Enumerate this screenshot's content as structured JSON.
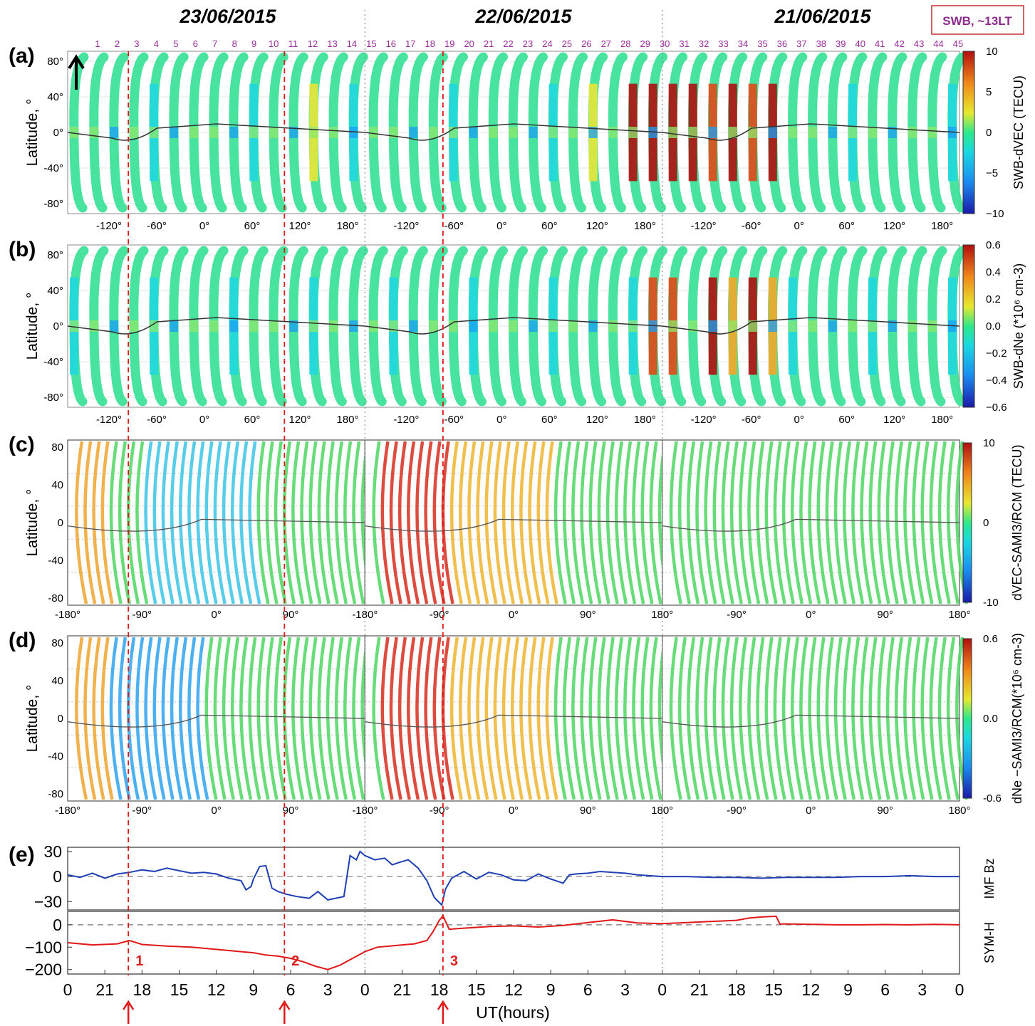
{
  "header": {
    "dates": [
      "23/06/2015",
      "22/06/2015",
      "21/06/2015"
    ],
    "satellite_box": "SWB, ~13LT"
  },
  "colors": {
    "bz": "#1f3fb4",
    "symh": "#e01818",
    "marker": "#e01818",
    "box": "#8b2a8b"
  },
  "orbit_numbers": [
    "45",
    "44",
    "43",
    "42",
    "41",
    "40",
    "39",
    "38",
    "37",
    "36",
    "35",
    "34",
    "33",
    "32",
    "31",
    "30",
    "29",
    "28",
    "27",
    "26",
    "25",
    "24",
    "23",
    "22",
    "21",
    "20",
    "19",
    "18",
    "17",
    "16",
    "15",
    "14",
    "13",
    "12",
    "11",
    "10",
    "9",
    "8",
    "7",
    "6",
    "5",
    "4",
    "3",
    "2",
    "1"
  ],
  "panels": [
    {
      "label": "(a)",
      "ylabel": "Latitude, °",
      "cblabel": "SWB-dVEC (TECU)",
      "cbticks": [
        "10",
        "5",
        "0",
        "−5",
        "−10"
      ],
      "yticks": [
        "80°",
        "40°",
        "0°",
        "-40°",
        "-80°"
      ],
      "xticks_swb": [
        "-120°",
        "-60°",
        "0°",
        "60°",
        "120°",
        "180°",
        "-120°",
        "-60°",
        "0°",
        "60°",
        "120°",
        "180°",
        "-120°",
        "-60°",
        "0°",
        "60°",
        "120°",
        "180°"
      ]
    },
    {
      "label": "(b)",
      "ylabel": "Latitude, °",
      "cblabel": "SWB-dNe (*10⁶ cm-3)",
      "cbticks": [
        "0.6",
        "0.4",
        "0.2",
        "0.0",
        "−0.2",
        "−0.4",
        "−0.6"
      ],
      "yticks": [
        "80°",
        "40°",
        "0°",
        "-40°",
        "-80°"
      ],
      "xticks_swb": [
        "-120°",
        "-60°",
        "0°",
        "60°",
        "120°",
        "180°",
        "-120°",
        "-60°",
        "0°",
        "60°",
        "120°",
        "180°",
        "-120°",
        "-60°",
        "0°",
        "60°",
        "120°",
        "180°"
      ]
    },
    {
      "label": "(c)",
      "ylabel": "Latitude, °",
      "cblabel": "dVEC-SAMI3/RCM (TECU)",
      "cbticks": [
        "10",
        "0",
        "-10"
      ],
      "yticks": [
        "80",
        "40",
        "0",
        "-40",
        "-80"
      ],
      "xticks_model": [
        "-180°",
        "-90°",
        "0°",
        "90°",
        "-180°",
        "-90°",
        "0°",
        "90°",
        "180°",
        "-90°",
        "0°",
        "90°",
        "180°"
      ]
    },
    {
      "label": "(d)",
      "ylabel": "Latitude, °",
      "cblabel": "dNe −SAMI3/RCM(*10⁶ cm-3)",
      "cbticks": [
        "0.6",
        "0.0",
        "-0.6"
      ],
      "yticks": [
        "80",
        "40",
        "0",
        "-40",
        "-80"
      ],
      "xticks_model": [
        "-180°",
        "-90°",
        "0°",
        "90°",
        "-180°",
        "-90°",
        "0°",
        "90°",
        "180°",
        "-90°",
        "0°",
        "90°",
        "180°"
      ]
    }
  ],
  "panel_e": {
    "label": "(e)",
    "bz_label": "IMF Bz",
    "symh_label": "SYM-H",
    "bz_yticks": [
      "30",
      "0",
      "−30"
    ],
    "symh_yticks": [
      "0",
      "−100",
      "−200"
    ],
    "xlabel": "UT(hours)",
    "xticks": [
      "0",
      "21",
      "18",
      "15",
      "12",
      "9",
      "6",
      "3",
      "0",
      "21",
      "18",
      "15",
      "12",
      "9",
      "6",
      "3",
      "0",
      "21",
      "18",
      "15",
      "12",
      "9",
      "6",
      "3",
      "0"
    ],
    "events": [
      "3",
      "2",
      "1"
    ]
  },
  "chart_data": {
    "type": "line",
    "x_unit": "hours before 00 UT 24/06/2015",
    "xlim": [
      0,
      72
    ],
    "event_markers_hours_before": [
      30.3,
      17.5,
      4.9
    ],
    "series": [
      {
        "name": "IMF Bz",
        "ylim": [
          -40,
          35
        ],
        "x": [
          0,
          1,
          2,
          3,
          4,
          5,
          6,
          7,
          8,
          9,
          10,
          11,
          12,
          13,
          14,
          14.4,
          14.8,
          15,
          15.5,
          16,
          16.5,
          17,
          17.6,
          18.5,
          19.5,
          20.2,
          21,
          22.3,
          22.8,
          23.3,
          23.6,
          24,
          24.8,
          25.6,
          26.2,
          26.8,
          27.5,
          28.3,
          29,
          29.6,
          30.2,
          30.5,
          31,
          32,
          33,
          34,
          35,
          36,
          37,
          38,
          39,
          40,
          40.5,
          41,
          42,
          43,
          44,
          45,
          46,
          47,
          48,
          50,
          52,
          54,
          56,
          58,
          60,
          62,
          64,
          66,
          68,
          70,
          72
        ],
        "y": [
          2,
          -1,
          4,
          -2,
          3,
          5,
          8,
          6,
          10,
          7,
          4,
          5,
          3,
          -2,
          -5,
          -16,
          -12,
          -3,
          12,
          13,
          -14,
          -18,
          -21,
          -24,
          -26,
          -18,
          -28,
          -24,
          25,
          20,
          30,
          25,
          20,
          22,
          14,
          17,
          20,
          10,
          -5,
          -25,
          -34,
          -15,
          -2,
          6,
          -3,
          5,
          2,
          -4,
          -5,
          3,
          -3,
          -8,
          2,
          3,
          4,
          6,
          5,
          4,
          2,
          1,
          0,
          0,
          -1,
          -1,
          -2,
          -1,
          -1,
          -1,
          0,
          0,
          1,
          0,
          0
        ]
      },
      {
        "name": "SYM-H",
        "ylim": [
          -220,
          60
        ],
        "x": [
          0,
          2,
          4,
          5,
          6,
          8,
          10,
          12,
          14,
          15,
          16,
          17,
          18,
          19,
          20,
          21,
          22,
          23,
          24,
          25,
          26,
          27,
          28,
          29,
          29.5,
          30,
          30.3,
          30.8,
          32,
          34,
          36,
          38,
          40,
          42,
          44,
          46,
          48,
          50,
          52,
          54,
          55,
          56,
          57.2,
          57.5,
          58,
          60,
          62,
          64,
          66,
          68,
          70,
          72
        ],
        "y": [
          -80,
          -90,
          -85,
          -70,
          -88,
          -95,
          -100,
          -110,
          -120,
          -125,
          -135,
          -140,
          -150,
          -165,
          -185,
          -200,
          -180,
          -150,
          -120,
          -100,
          -95,
          -90,
          -85,
          -70,
          -30,
          20,
          40,
          -20,
          -15,
          -8,
          -5,
          -10,
          -3,
          10,
          22,
          8,
          5,
          10,
          15,
          20,
          30,
          35,
          38,
          3,
          4,
          2,
          0,
          0,
          1,
          0,
          2,
          0
        ]
      }
    ]
  }
}
